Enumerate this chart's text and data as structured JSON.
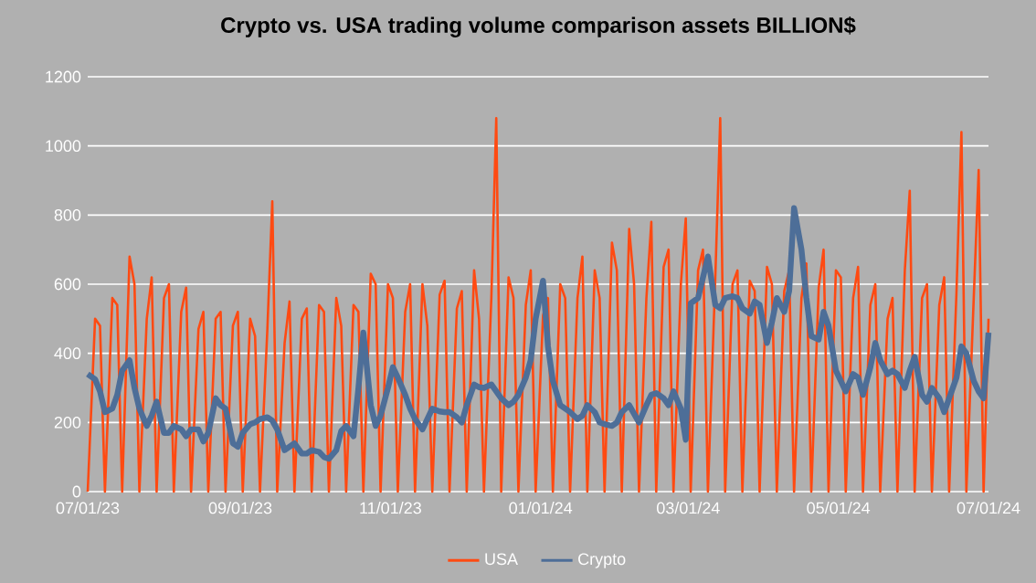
{
  "chart_data": {
    "type": "line",
    "title": "Crypto vs. USA trading volume comparison assets BILLION$",
    "x": [
      "2023-07-01",
      "2023-07-04",
      "2023-07-06",
      "2023-07-08",
      "2023-07-11",
      "2023-07-13",
      "2023-07-15",
      "2023-07-18",
      "2023-07-20",
      "2023-07-22",
      "2023-07-25",
      "2023-07-27",
      "2023-07-29",
      "2023-08-01",
      "2023-08-03",
      "2023-08-05",
      "2023-08-08",
      "2023-08-10",
      "2023-08-12",
      "2023-08-15",
      "2023-08-17",
      "2023-08-19",
      "2023-08-22",
      "2023-08-24",
      "2023-08-26",
      "2023-08-29",
      "2023-08-31",
      "2023-09-02",
      "2023-09-05",
      "2023-09-07",
      "2023-09-09",
      "2023-09-12",
      "2023-09-14",
      "2023-09-16",
      "2023-09-19",
      "2023-09-21",
      "2023-09-23",
      "2023-09-26",
      "2023-09-28",
      "2023-09-30",
      "2023-10-03",
      "2023-10-05",
      "2023-10-07",
      "2023-10-10",
      "2023-10-12",
      "2023-10-14",
      "2023-10-17",
      "2023-10-19",
      "2023-10-21",
      "2023-10-24",
      "2023-10-26",
      "2023-10-28",
      "2023-10-31",
      "2023-11-02",
      "2023-11-04",
      "2023-11-07",
      "2023-11-09",
      "2023-11-11",
      "2023-11-14",
      "2023-11-16",
      "2023-11-18",
      "2023-11-21",
      "2023-11-23",
      "2023-11-25",
      "2023-11-28",
      "2023-11-30",
      "2023-12-02",
      "2023-12-05",
      "2023-12-07",
      "2023-12-09",
      "2023-12-12",
      "2023-12-14",
      "2023-12-16",
      "2023-12-19",
      "2023-12-21",
      "2023-12-23",
      "2023-12-26",
      "2023-12-28",
      "2023-12-30",
      "2024-01-02",
      "2024-01-04",
      "2024-01-06",
      "2024-01-09",
      "2024-01-11",
      "2024-01-13",
      "2024-01-16",
      "2024-01-18",
      "2024-01-20",
      "2024-01-23",
      "2024-01-25",
      "2024-01-27",
      "2024-01-30",
      "2024-02-01",
      "2024-02-03",
      "2024-02-06",
      "2024-02-08",
      "2024-02-10",
      "2024-02-13",
      "2024-02-15",
      "2024-02-17",
      "2024-02-20",
      "2024-02-22",
      "2024-02-24",
      "2024-02-27",
      "2024-02-29",
      "2024-03-02",
      "2024-03-05",
      "2024-03-07",
      "2024-03-09",
      "2024-03-12",
      "2024-03-14",
      "2024-03-16",
      "2024-03-19",
      "2024-03-21",
      "2024-03-23",
      "2024-03-26",
      "2024-03-28",
      "2024-03-30",
      "2024-04-02",
      "2024-04-04",
      "2024-04-06",
      "2024-04-09",
      "2024-04-11",
      "2024-04-13",
      "2024-04-16",
      "2024-04-18",
      "2024-04-20",
      "2024-04-23",
      "2024-04-25",
      "2024-04-27",
      "2024-04-30",
      "2024-05-02",
      "2024-05-04",
      "2024-05-07",
      "2024-05-09",
      "2024-05-11",
      "2024-05-14",
      "2024-05-16",
      "2024-05-18",
      "2024-05-21",
      "2024-05-23",
      "2024-05-25",
      "2024-05-28",
      "2024-05-30",
      "2024-06-01",
      "2024-06-04",
      "2024-06-06",
      "2024-06-08",
      "2024-06-11",
      "2024-06-13",
      "2024-06-15",
      "2024-06-18",
      "2024-06-20",
      "2024-06-22",
      "2024-06-25",
      "2024-06-27",
      "2024-06-29",
      "2024-07-01"
    ],
    "series": [
      {
        "name": "USA",
        "color": "#ff4a12",
        "values": [
          0,
          500,
          480,
          0,
          560,
          540,
          0,
          680,
          600,
          0,
          500,
          620,
          0,
          560,
          600,
          0,
          520,
          590,
          0,
          470,
          520,
          0,
          500,
          520,
          0,
          480,
          520,
          0,
          500,
          450,
          0,
          470,
          840,
          0,
          430,
          550,
          0,
          500,
          530,
          0,
          540,
          520,
          0,
          560,
          480,
          0,
          540,
          520,
          0,
          630,
          600,
          0,
          600,
          560,
          0,
          520,
          600,
          0,
          600,
          480,
          0,
          570,
          610,
          0,
          530,
          580,
          0,
          640,
          500,
          0,
          560,
          1080,
          0,
          620,
          560,
          0,
          540,
          640,
          0,
          510,
          560,
          0,
          600,
          560,
          0,
          560,
          680,
          0,
          640,
          560,
          0,
          720,
          640,
          0,
          760,
          600,
          0,
          560,
          780,
          0,
          650,
          700,
          0,
          600,
          790,
          0,
          640,
          700,
          0,
          620,
          1080,
          0,
          600,
          640,
          0,
          610,
          580,
          0,
          650,
          600,
          0,
          580,
          640,
          0,
          560,
          660,
          0,
          590,
          700,
          0,
          640,
          620,
          0,
          560,
          650,
          0,
          540,
          600,
          0,
          500,
          560,
          0,
          640,
          870,
          0,
          560,
          600,
          0,
          540,
          620,
          0,
          580,
          1040,
          0,
          560,
          930,
          0,
          500
        ]
      },
      {
        "name": "Crypto",
        "color": "#4d6e98",
        "values": [
          340,
          325,
          290,
          230,
          240,
          280,
          350,
          380,
          300,
          240,
          190,
          220,
          260,
          170,
          170,
          190,
          180,
          160,
          180,
          180,
          145,
          170,
          270,
          250,
          240,
          140,
          130,
          170,
          195,
          200,
          210,
          215,
          205,
          180,
          120,
          130,
          140,
          110,
          110,
          120,
          115,
          100,
          95,
          120,
          175,
          190,
          160,
          300,
          460,
          250,
          190,
          220,
          300,
          360,
          330,
          280,
          240,
          210,
          180,
          210,
          240,
          232,
          230,
          230,
          215,
          200,
          250,
          310,
          302,
          300,
          310,
          290,
          270,
          250,
          260,
          280,
          330,
          380,
          500,
          610,
          420,
          320,
          250,
          240,
          230,
          210,
          220,
          250,
          230,
          200,
          195,
          190,
          200,
          230,
          250,
          225,
          200,
          250,
          280,
          285,
          270,
          250,
          290,
          240,
          150,
          545,
          560,
          620,
          680,
          540,
          530,
          560,
          565,
          560,
          530,
          515,
          550,
          540,
          430,
          490,
          560,
          520,
          580,
          820,
          700,
          560,
          450,
          440,
          520,
          480,
          350,
          320,
          290,
          340,
          330,
          280,
          360,
          430,
          380,
          340,
          350,
          340,
          300,
          350,
          390,
          280,
          260,
          300,
          270,
          230,
          270,
          330,
          420,
          400,
          320,
          290,
          270,
          460
        ]
      }
    ],
    "xlim": [
      "2023-07-01",
      "2024-07-01"
    ],
    "xticks": [
      {
        "value": "2023-07-01",
        "label": "07/01/23"
      },
      {
        "value": "2023-09-01",
        "label": "09/01/23"
      },
      {
        "value": "2023-11-01",
        "label": "11/01/23"
      },
      {
        "value": "2024-01-01",
        "label": "01/01/24"
      },
      {
        "value": "2024-03-01",
        "label": "03/01/24"
      },
      {
        "value": "2024-05-01",
        "label": "05/01/24"
      },
      {
        "value": "2024-07-01",
        "label": "07/01/24"
      }
    ],
    "ylim": [
      0,
      1200
    ],
    "yticks": [
      0,
      200,
      400,
      600,
      800,
      1000,
      1200
    ],
    "grid": "y",
    "legend": "bottom",
    "marker": "none",
    "line_style": "solid"
  }
}
